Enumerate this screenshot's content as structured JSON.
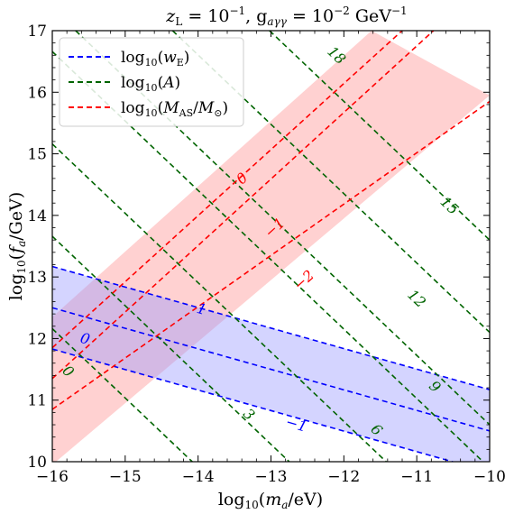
{
  "chart_data": {
    "type": "line",
    "title": "z_L = 10^{-1},  g_{aγγ} = 10^{-2} GeV^{-1}",
    "title_parts": {
      "t1": "z",
      "t1_sub": "L",
      "t2": " = 10",
      "t2_sup": "−1",
      "t3": ",  g",
      "t3_sub": "aγγ",
      "t4": " = 10",
      "t4_sup": "−2",
      "t5": " GeV",
      "t5_sup": "−1"
    },
    "xlabel": "log10(m_a/eV)",
    "ylabel": "log10(f_a/GeV)",
    "xlim": [
      -16,
      -10
    ],
    "ylim": [
      10,
      17
    ],
    "xticks": [
      -16,
      -15,
      -14,
      -13,
      -12,
      -11,
      -10
    ],
    "yticks": [
      10,
      11,
      12,
      13,
      14,
      15,
      16,
      17
    ],
    "xtick_labels": [
      "−16",
      "−15",
      "−14",
      "−13",
      "−12",
      "−11",
      "−10"
    ],
    "ytick_labels": [
      "10",
      "11",
      "12",
      "13",
      "14",
      "15",
      "16",
      "17"
    ],
    "grid": false,
    "legend": {
      "placement": "top-left",
      "entries": [
        {
          "label": "log10(w_E)",
          "color": "#0000ff"
        },
        {
          "label": "log10(A)",
          "color": "#006400"
        },
        {
          "label": "log10(M_AS/M_⊙)",
          "color": "#ff0000"
        }
      ]
    },
    "series": [
      {
        "name": "log10(w_E)",
        "color": "#0000ff",
        "contours": [
          {
            "label": "1",
            "points": [
              [
                -16,
                13.17
              ],
              [
                -10,
                11.17
              ]
            ]
          },
          {
            "label": "0",
            "points": [
              [
                -16,
                12.5
              ],
              [
                -10,
                10.5
              ]
            ]
          },
          {
            "label": "−1",
            "points": [
              [
                -16,
                11.83
              ],
              [
                -10,
                9.83
              ]
            ]
          }
        ],
        "label_positions": [
          {
            "text": "1",
            "x": -13.95,
            "y": 12.48
          },
          {
            "text": "0",
            "x": -15.55,
            "y": 12.0
          },
          {
            "text": "−1",
            "x": -12.65,
            "y": 10.61
          }
        ]
      },
      {
        "name": "log10(A)",
        "color": "#006400",
        "contours": [
          {
            "label": "",
            "points": [
              [
                -16,
                12.16
              ],
              [
                -14.08,
                10
              ]
            ]
          },
          {
            "label": "3",
            "points": [
              [
                -16,
                13.66
              ],
              [
                -12.75,
                10
              ]
            ]
          },
          {
            "label": "6",
            "points": [
              [
                -16,
                15.16
              ],
              [
                -11.42,
                10
              ]
            ]
          },
          {
            "label": "9",
            "points": [
              [
                -16,
                16.66
              ],
              [
                -10.09,
                10
              ]
            ]
          },
          {
            "label": "12",
            "points": [
              [
                -15.68,
                17
              ],
              [
                -10,
                10.6
              ]
            ]
          },
          {
            "label": "15",
            "points": [
              [
                -14.35,
                17
              ],
              [
                -10,
                12.1
              ]
            ]
          },
          {
            "label": "18",
            "points": [
              [
                -13.02,
                17
              ],
              [
                -10,
                13.6
              ]
            ]
          }
        ],
        "label_positions": [
          {
            "text": "0",
            "x": -15.78,
            "y": 11.47
          },
          {
            "text": "3",
            "x": -13.3,
            "y": 10.77
          },
          {
            "text": "6",
            "x": -11.55,
            "y": 10.52
          },
          {
            "text": "9",
            "x": -10.75,
            "y": 11.22
          },
          {
            "text": "12",
            "x": -11.0,
            "y": 12.65
          },
          {
            "text": "15",
            "x": -10.55,
            "y": 14.16
          },
          {
            "text": "18",
            "x": -12.1,
            "y": 16.6
          }
        ]
      },
      {
        "name": "log10(M_AS/M_⊙)",
        "color": "#ff0000",
        "contours": [
          {
            "label": "0",
            "points": [
              [
                -16,
                11.85
              ],
              [
                -11.2,
                17
              ]
            ]
          },
          {
            "label": "−1",
            "points": [
              [
                -16,
                11.35
              ],
              [
                -10.77,
                17
              ]
            ]
          },
          {
            "label": "−2",
            "points": [
              [
                -16,
                10.85
              ],
              [
                -10,
                15.85
              ]
            ]
          }
        ],
        "label_positions": [
          {
            "text": "0",
            "x": -13.4,
            "y": 14.6
          },
          {
            "text": "−1",
            "x": -12.95,
            "y": 13.8
          },
          {
            "text": "−2",
            "x": -12.55,
            "y": 12.95
          }
        ]
      }
    ],
    "bands": [
      {
        "name": "log10(M_AS/M_⊙) band",
        "color": "#ff9999",
        "opacity": 0.45,
        "upper": [
          [
            -16,
            12.35
          ],
          [
            -11.62,
            17
          ]
        ],
        "lower": [
          [
            -16,
            9.95
          ],
          [
            -10,
            15.95
          ]
        ]
      },
      {
        "name": "log10(w_E) band",
        "color": "#9999ff",
        "opacity": 0.42,
        "upper": [
          [
            -16,
            13.17
          ],
          [
            -10,
            11.17
          ]
        ],
        "lower": [
          [
            -16,
            11.83
          ],
          [
            -10,
            9.83
          ]
        ]
      }
    ]
  }
}
